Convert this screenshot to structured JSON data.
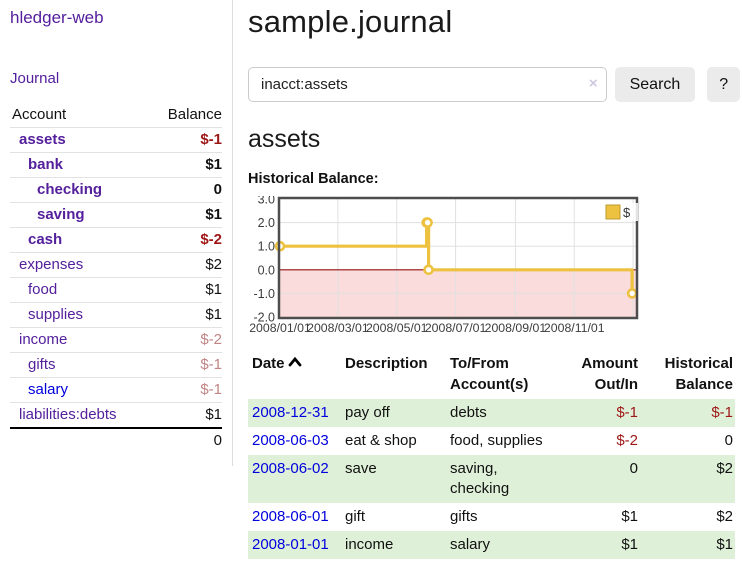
{
  "header": {
    "title": "sample.journal"
  },
  "sidebar": {
    "brand": "hledger-web",
    "journal_link": "Journal",
    "accounts": {
      "header_account": "Account",
      "header_balance": "Balance",
      "rows": [
        {
          "name": "assets",
          "depth": 1,
          "bold": true,
          "link": "purple",
          "balance": "$-1",
          "balance_style": "strong-neg"
        },
        {
          "name": "bank",
          "depth": 2,
          "bold": true,
          "link": "purple",
          "balance": "$1",
          "balance_style": "strong"
        },
        {
          "name": "checking",
          "depth": 3,
          "bold": true,
          "link": "purple",
          "balance": "0",
          "balance_style": "strong"
        },
        {
          "name": "saving",
          "depth": 3,
          "bold": true,
          "link": "purple",
          "balance": "$1",
          "balance_style": "strong"
        },
        {
          "name": "cash",
          "depth": 2,
          "bold": true,
          "link": "purple",
          "balance": "$-2",
          "balance_style": "strong-neg"
        },
        {
          "name": "expenses",
          "depth": 1,
          "bold": false,
          "link": "purple",
          "balance": "$2",
          "balance_style": "plain"
        },
        {
          "name": "food",
          "depth": 2,
          "bold": false,
          "link": "purple",
          "balance": "$1",
          "balance_style": "plain"
        },
        {
          "name": "supplies",
          "depth": 2,
          "bold": false,
          "link": "purple",
          "balance": "$1",
          "balance_style": "plain"
        },
        {
          "name": "income",
          "depth": 1,
          "bold": false,
          "link": "purple",
          "balance": "$-2",
          "balance_style": "soft-neg"
        },
        {
          "name": "gifts",
          "depth": 2,
          "bold": false,
          "link": "purple",
          "balance": "$-1",
          "balance_style": "soft-neg"
        },
        {
          "name": "salary",
          "depth": 2,
          "bold": false,
          "link": "blue",
          "balance": "$-1",
          "balance_style": "soft-neg"
        },
        {
          "name": "liabilities:debts",
          "depth": 1,
          "bold": false,
          "link": "purple",
          "balance": "$1",
          "balance_style": "plain"
        }
      ],
      "total": "0"
    }
  },
  "search": {
    "value": "inacct:assets",
    "clear_icon": "×",
    "button_label": "Search",
    "help_label": "?"
  },
  "account_page": {
    "heading": "assets",
    "chart_label": "Historical Balance:"
  },
  "chart_data": {
    "type": "line",
    "title": "Historical Balance",
    "step": true,
    "legend": {
      "label": "$",
      "position": "top-right"
    },
    "series": [
      {
        "name": "$",
        "points": [
          {
            "date": "2008-01-01",
            "value": 1
          },
          {
            "date": "2008-06-01",
            "value": 2
          },
          {
            "date": "2008-06-02",
            "value": 2
          },
          {
            "date": "2008-06-03",
            "value": 0
          },
          {
            "date": "2008-12-31",
            "value": -1
          }
        ]
      }
    ],
    "ylim": [
      -2,
      3
    ],
    "yticks": [
      {
        "v": 3,
        "label": "3.0"
      },
      {
        "v": 2,
        "label": "2.0"
      },
      {
        "v": 1,
        "label": "1.0"
      },
      {
        "v": 0,
        "label": "0.0"
      },
      {
        "v": -1,
        "label": "-1.0"
      },
      {
        "v": -2,
        "label": "-2.0"
      }
    ],
    "xdomain": [
      "2008-01-01",
      "2009-01-04"
    ],
    "xticks": [
      {
        "date": "2008-01-01",
        "label": "2008/01/01",
        "gridline": false
      },
      {
        "date": "2008-03-01",
        "label": "2008/03/01",
        "gridline": true
      },
      {
        "date": "2008-05-01",
        "label": "2008/05/01",
        "gridline": true
      },
      {
        "date": "2008-07-01",
        "label": "2008/07/01",
        "gridline": true
      },
      {
        "date": "2008-09-01",
        "label": "2008/09/01",
        "gridline": true
      },
      {
        "date": "2008-11-01",
        "label": "2008/11/01",
        "gridline": true
      },
      {
        "date": "2009-01-01",
        "label": "",
        "gridline": true
      }
    ],
    "grid": true
  },
  "transactions": {
    "columns": [
      {
        "label": "Date",
        "align": "left",
        "sort_icon": "chevron-up"
      },
      {
        "label": "Description",
        "align": "left"
      },
      {
        "label": "To/From Account(s)",
        "align": "left"
      },
      {
        "label": "Amount Out/In",
        "align": "right"
      },
      {
        "label": "Historical Balance",
        "align": "right"
      }
    ],
    "rows": [
      {
        "date": "2008-12-31",
        "description": "pay off",
        "accounts": "debts",
        "amount": "$-1",
        "amount_negative": true,
        "balance": "$-1",
        "balance_negative": true
      },
      {
        "date": "2008-06-03",
        "description": "eat & shop",
        "accounts": "food, supplies",
        "amount": "$-2",
        "amount_negative": true,
        "balance": "0",
        "balance_negative": false
      },
      {
        "date": "2008-06-02",
        "description": "save",
        "accounts": "saving, checking",
        "amount": "0",
        "amount_negative": false,
        "balance": "$2",
        "balance_negative": false
      },
      {
        "date": "2008-06-01",
        "description": "gift",
        "accounts": "gifts",
        "amount": "$1",
        "amount_negative": false,
        "balance": "$2",
        "balance_negative": false
      },
      {
        "date": "2008-01-01",
        "description": "income",
        "accounts": "salary",
        "amount": "$1",
        "amount_negative": false,
        "balance": "$1",
        "balance_negative": false
      }
    ]
  },
  "colors": {
    "link_purple": "#54209c",
    "link_blue": "#0000dd",
    "negative_strong": "#9e1717",
    "negative_soft": "#c08585",
    "row_green": "#dff0d8",
    "chart_line": "#edc240",
    "chart_negative_fill": "#fbdcdc",
    "chart_zero_line": "#941010",
    "chart_border": "#4d4d4d",
    "chart_gridline": "#e0e0e0"
  }
}
